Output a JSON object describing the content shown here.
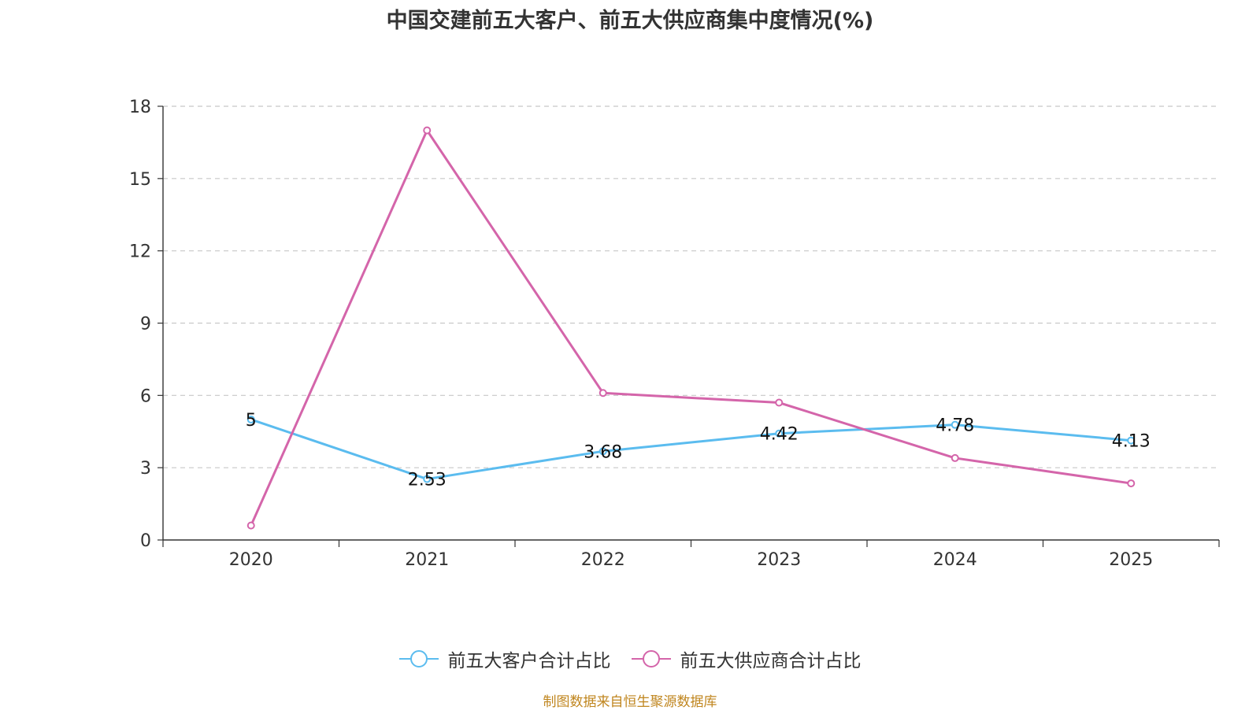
{
  "chart_data": {
    "type": "line",
    "title": "中国交建前五大客户、前五大供应商集中度情况(%)",
    "categories": [
      "2020",
      "2021",
      "2022",
      "2023",
      "2024",
      "2025"
    ],
    "ylim": [
      0,
      18
    ],
    "yticks": [
      0,
      3,
      6,
      9,
      12,
      15,
      18
    ],
    "series": [
      {
        "name": "前五大客户合计占比",
        "color": "#5bbcef",
        "values": [
          5,
          2.53,
          3.68,
          4.42,
          4.78,
          4.13
        ],
        "labels": [
          "5",
          "2.53",
          "3.68",
          "4.42",
          "4.78",
          "4.13"
        ]
      },
      {
        "name": "前五大供应商合计占比",
        "color": "#d465aa",
        "values": [
          0.6,
          17,
          6.1,
          5.7,
          3.4,
          2.35
        ]
      }
    ]
  },
  "source": "制图数据来自恒生聚源数据库"
}
